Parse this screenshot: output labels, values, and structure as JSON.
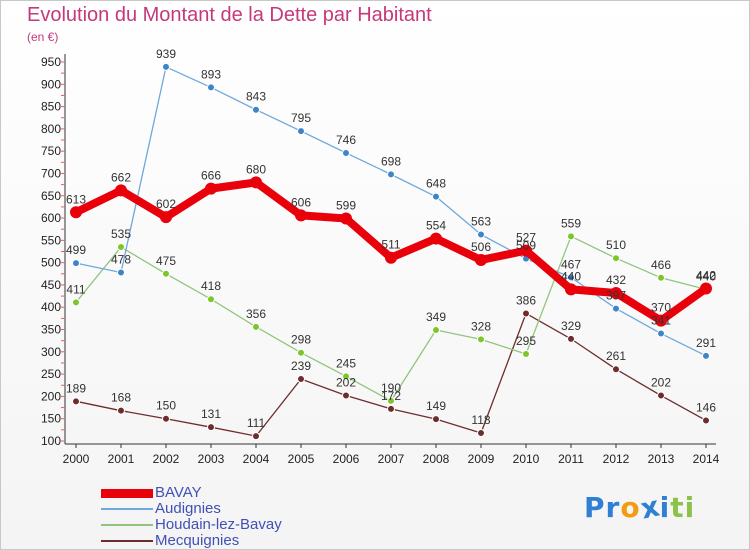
{
  "header": {
    "title": "Evolution du Montant de la Dette par Habitant",
    "unit": "(en €)"
  },
  "chart_data": {
    "type": "line",
    "title": "Evolution du Montant de la Dette par Habitant",
    "ylabel": "(en €)",
    "xlabel": "",
    "x": [
      "2000",
      "2001",
      "2002",
      "2003",
      "2004",
      "2005",
      "2006",
      "2007",
      "2008",
      "2009",
      "2010",
      "2011",
      "2012",
      "2013",
      "2014"
    ],
    "ylim": [
      100,
      950
    ],
    "yticks": [
      100,
      150,
      200,
      250,
      300,
      350,
      400,
      450,
      500,
      550,
      600,
      650,
      700,
      750,
      800,
      850,
      900,
      950
    ],
    "grid": false,
    "legend_position": "bottom-left",
    "series": [
      {
        "name": "BAVAY",
        "color": "#e8000b",
        "marker_color": "#e8000b",
        "values": [
          613,
          662,
          602,
          666,
          680,
          606,
          599,
          511,
          554,
          506,
          527,
          440,
          432,
          370,
          442
        ],
        "labels": [
          "613",
          "662",
          "602",
          "666",
          "680",
          "606",
          "599",
          "511",
          "554",
          "506",
          "527",
          "440",
          "432",
          "370",
          "442"
        ]
      },
      {
        "name": "Audignies",
        "color": "#6fa8dc",
        "marker_color": "#3d85c6",
        "values": [
          499,
          478,
          939,
          893,
          843,
          795,
          746,
          698,
          648,
          563,
          509,
          467,
          397,
          341,
          291
        ],
        "labels": [
          "499",
          "478",
          "939",
          "893",
          "843",
          "795",
          "746",
          "698",
          "648",
          "563",
          "509",
          "467",
          "397",
          "341",
          "291"
        ]
      },
      {
        "name": "Houdain-lez-Bavay",
        "color": "#93c47d",
        "marker_color": "#7dc62a",
        "values": [
          411,
          535,
          475,
          418,
          356,
          298,
          245,
          190,
          349,
          328,
          295,
          559,
          510,
          466,
          440
        ],
        "labels": [
          "411",
          "535",
          "475",
          "418",
          "356",
          "298",
          "245",
          "190",
          "349",
          "328",
          "295",
          "559",
          "510",
          "466",
          "440"
        ]
      },
      {
        "name": "Mecquignies",
        "color": "#6e2d2d",
        "marker_color": "#6e2d2d",
        "values": [
          189,
          168,
          150,
          131,
          111,
          239,
          202,
          172,
          149,
          118,
          386,
          329,
          261,
          202,
          146
        ],
        "labels": [
          "189",
          "168",
          "150",
          "131",
          "111",
          "239",
          "202",
          "172",
          "149",
          "118",
          "386",
          "329",
          "261",
          "202",
          "146"
        ]
      }
    ]
  },
  "brand": {
    "letters": [
      "P",
      "r",
      "o",
      "x",
      "i",
      "t",
      "i"
    ],
    "colors": [
      "#2f7fd3",
      "#2f7fd3",
      "#f39c12",
      "#2f7fd3",
      "#2f7fd3",
      "#8bc34a",
      "#8bc34a"
    ]
  }
}
